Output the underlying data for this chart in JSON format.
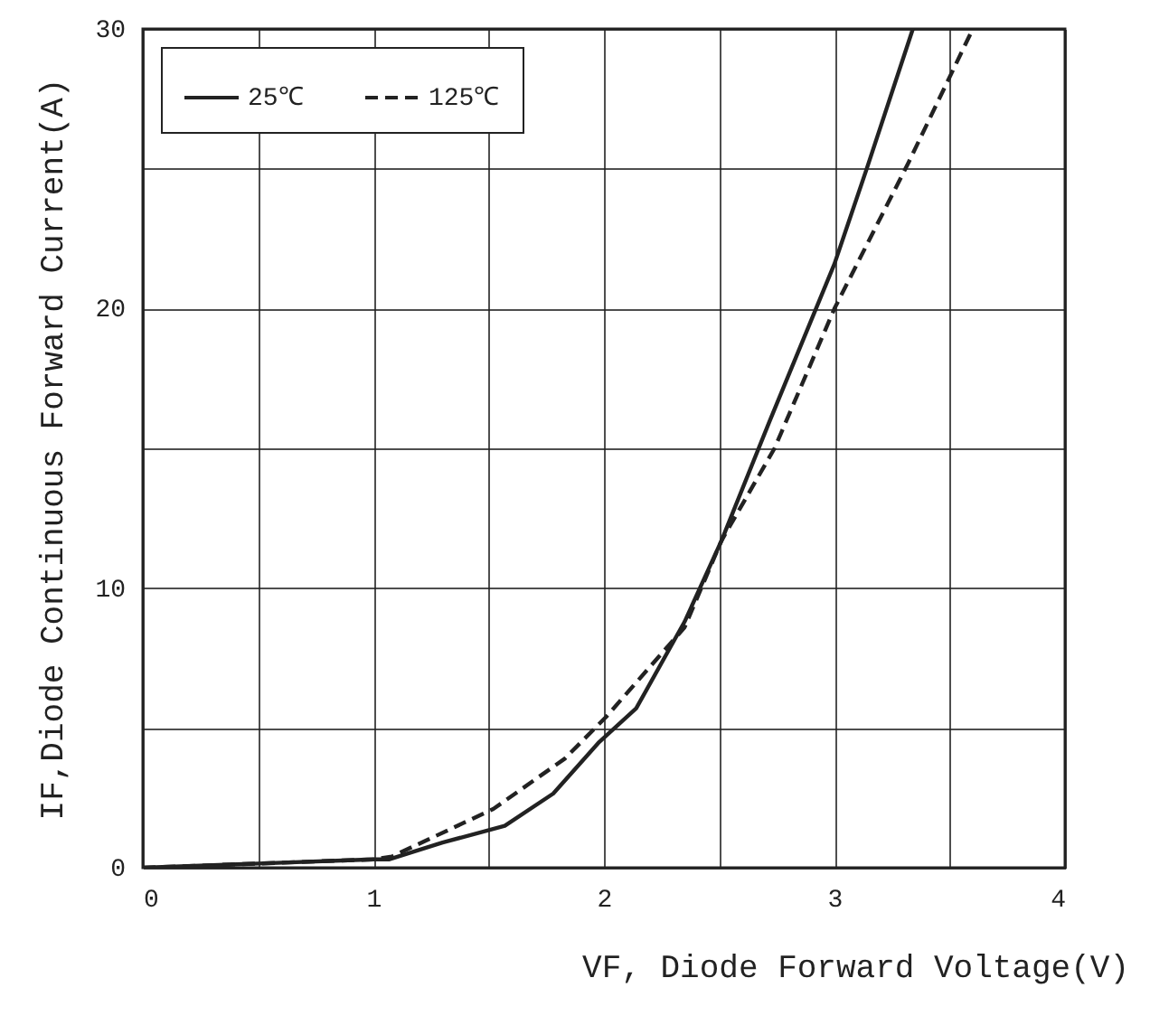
{
  "chart_data": {
    "type": "line",
    "xlabel": "VF, Diode Forward Voltage(V)",
    "ylabel": "IF,Diode Continuous Forward Current(A)",
    "xlim": [
      0,
      4
    ],
    "ylim": [
      0,
      30
    ],
    "xticks": [
      0,
      {
        "value": 0.5,
        "label": null
      },
      1,
      {
        "value": 1.5,
        "label": null
      },
      2,
      {
        "value": 2.5,
        "label": null
      },
      3,
      {
        "value": 3.5,
        "label": null
      },
      4
    ],
    "yticks": [
      0,
      {
        "value": 5,
        "label": null
      },
      10,
      {
        "value": 15,
        "label": null
      },
      20,
      {
        "value": 25,
        "label": null
      },
      30
    ],
    "grid": true,
    "legend": "top left",
    "series": [
      {
        "name": "25℃",
        "color": "#222222",
        "line_style": "solid",
        "x": [
          0,
          0.5,
          1.0,
          1.07,
          1.3,
          1.57,
          1.78,
          1.98,
          2.14,
          2.35,
          2.51,
          2.72,
          3.0,
          3.14,
          3.34
        ],
        "values": [
          0,
          0.15,
          0.3,
          0.3,
          0.9,
          1.5,
          2.65,
          4.5,
          5.7,
          8.8,
          11.7,
          16,
          21.6,
          25,
          30
        ]
      },
      {
        "name": "125℃",
        "color": "#222222",
        "line_style": "dashed",
        "x": [
          0,
          0.5,
          1.0,
          1.08,
          1.52,
          1.83,
          2.01,
          2.35,
          2.51,
          2.74,
          3.0,
          3.32,
          3.6
        ],
        "values": [
          0,
          0.15,
          0.3,
          0.4,
          2.1,
          3.9,
          5.4,
          8.6,
          11.7,
          15,
          20,
          25.2,
          30
        ]
      }
    ]
  }
}
